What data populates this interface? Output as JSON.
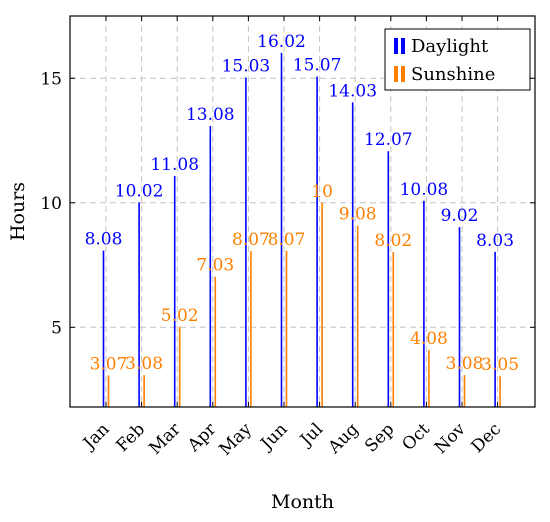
{
  "chart_data": {
    "type": "bar",
    "title": "",
    "xlabel": "Month",
    "ylabel": "Hours",
    "categories": [
      "Jan",
      "Feb",
      "Mar",
      "Apr",
      "May",
      "Jun",
      "Jul",
      "Aug",
      "Sep",
      "Oct",
      "Nov",
      "Dec"
    ],
    "series": [
      {
        "name": "Daylight",
        "color": "#0000ff",
        "values": [
          8.08,
          10.02,
          11.08,
          13.08,
          15.03,
          16.02,
          15.07,
          14.03,
          12.07,
          10.08,
          9.02,
          8.03
        ],
        "labels": [
          "8.08",
          "10.02",
          "11.08",
          "13.08",
          "15.03",
          "16.02",
          "15.07",
          "14.03",
          "12.07",
          "10.08",
          "9.02",
          "8.03"
        ]
      },
      {
        "name": "Sunshine",
        "color": "#ff8000",
        "values": [
          3.07,
          3.08,
          5.02,
          7.03,
          8.07,
          8.07,
          10,
          9.08,
          8.02,
          4.08,
          3.08,
          3.05
        ],
        "labels": [
          "3.07",
          "3.08",
          "5.02",
          "7.03",
          "8.07",
          "8.07",
          "10",
          "9.08",
          "8.02",
          "4.08",
          "3.08",
          "3.05"
        ]
      }
    ],
    "ylim": [
      1.8,
      17.5
    ],
    "yticks": [
      5,
      10,
      15
    ],
    "ytick_labels": [
      "5",
      "10",
      "15"
    ],
    "grid": true,
    "legend_position": "top-right"
  }
}
